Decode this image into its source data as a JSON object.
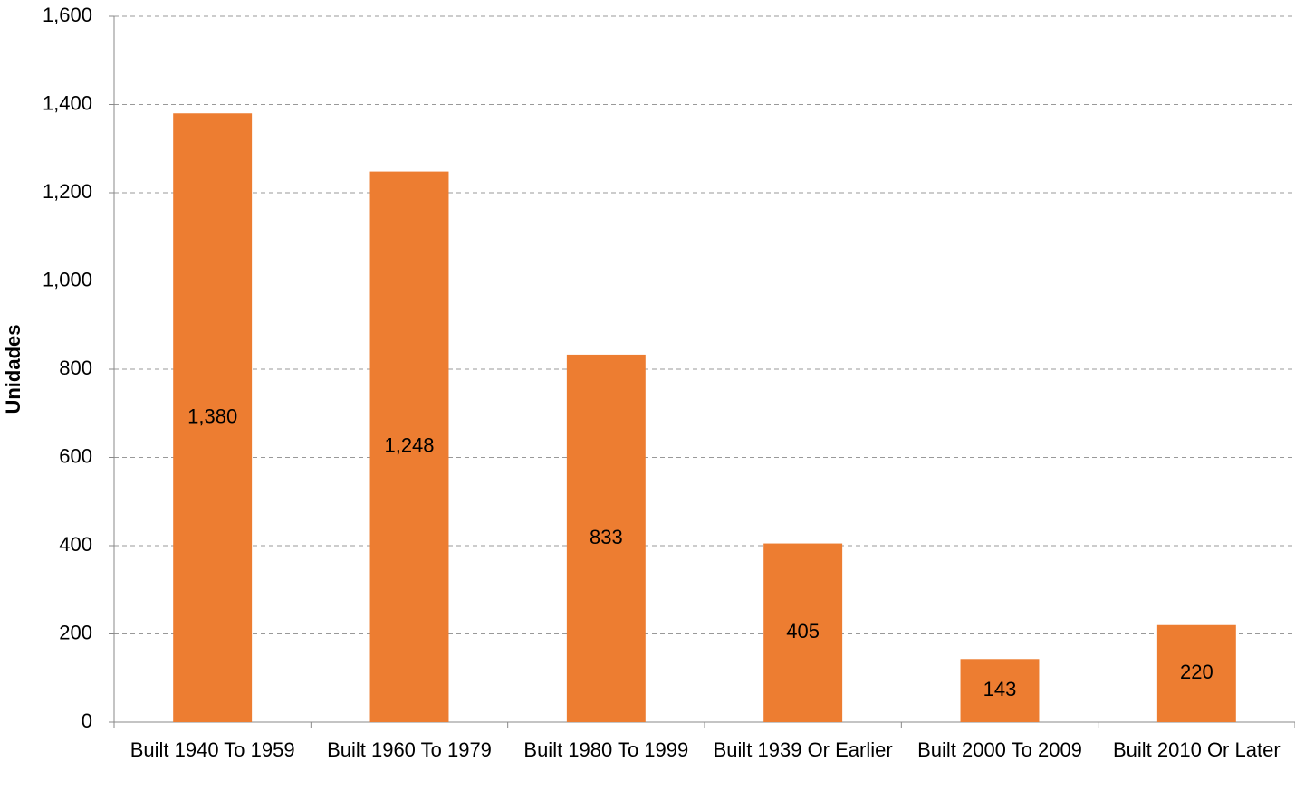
{
  "chart_data": {
    "type": "bar",
    "y_label": "Unidades",
    "categories": [
      "Built 1940 To 1959",
      "Built 1960 To 1979",
      "Built 1980 To 1999",
      "Built 1939 Or Earlier",
      "Built 2000 To 2009",
      "Built 2010 Or Later"
    ],
    "values": [
      1380,
      1248,
      833,
      405,
      143,
      220
    ],
    "value_labels": [
      "1,380",
      "1,248",
      "833",
      "405",
      "143",
      "220"
    ],
    "color": "#ed7d31",
    "ylim": [
      0,
      1600
    ],
    "yticks": [
      0,
      200,
      400,
      600,
      800,
      {
        "value": 1000,
        "label": "1,000"
      },
      {
        "value": 1200,
        "label": "1,200"
      },
      {
        "value": 1400,
        "label": "1,400"
      },
      {
        "value": 1600,
        "label": "1,600"
      }
    ],
    "grid": true
  }
}
